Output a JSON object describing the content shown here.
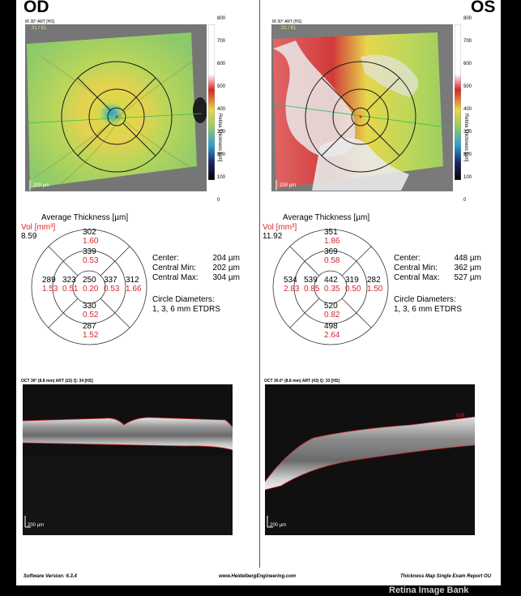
{
  "watermark": "Retina Image Bank",
  "colorbar": {
    "title": "Retina Thickness [µm]",
    "ticks": [
      "800",
      "700",
      "600",
      "500",
      "400",
      "300",
      "200",
      "100",
      "0"
    ]
  },
  "od": {
    "label": "OD",
    "map_title": "IR 30° ART [HS]",
    "q_badge": "31 / 61",
    "scale_bar": "200 µm",
    "avg_title": "Average Thickness [µm]",
    "vol_label": "Vol [mm³]",
    "vol_total": "8.59",
    "sectors": {
      "outer_top": {
        "t": "302",
        "v": "1.60"
      },
      "inner_top": {
        "t": "339",
        "v": "0.53"
      },
      "center": {
        "t": "250",
        "v": "0.20"
      },
      "inner_left": {
        "t": "323",
        "v": "0.51"
      },
      "inner_right": {
        "t": "337",
        "v": "0.53"
      },
      "outer_left": {
        "t": "289",
        "v": "1.53"
      },
      "outer_right": {
        "t": "312",
        "v": "1.66"
      },
      "inner_bottom": {
        "t": "330",
        "v": "0.52"
      },
      "outer_bottom": {
        "t": "287",
        "v": "1.52"
      }
    },
    "stats": [
      {
        "k": "Center:",
        "v": "204 µm"
      },
      {
        "k": "Central Min:",
        "v": "202 µm"
      },
      {
        "k": "Central Max:",
        "v": "304 µm"
      }
    ],
    "circle_label": "Circle Diameters:",
    "circle_value": "1, 3, 6 mm ETDRS",
    "scan_title": "OCT 30° (8.8 mm) ART (22) Q: 34 [HS]",
    "scan_scale": "200 µm"
  },
  "os": {
    "label": "OS",
    "map_title": "IR 30° ART [HS]",
    "q_badge": "31 / 61",
    "scale_bar": "200 µm",
    "avg_title": "Average Thickness [µm]",
    "vol_label": "Vol [mm³]",
    "vol_total": "11.92",
    "sectors": {
      "outer_top": {
        "t": "351",
        "v": "1.86"
      },
      "inner_top": {
        "t": "369",
        "v": "0.58"
      },
      "center": {
        "t": "442",
        "v": "0.35"
      },
      "inner_left": {
        "t": "539",
        "v": "0.85"
      },
      "inner_right": {
        "t": "319",
        "v": "0.50"
      },
      "outer_left": {
        "t": "534",
        "v": "2.83"
      },
      "outer_right": {
        "t": "282",
        "v": "1.50"
      },
      "inner_bottom": {
        "t": "520",
        "v": "0.82"
      },
      "outer_bottom": {
        "t": "498",
        "v": "2.64"
      }
    },
    "stats": [
      {
        "k": "Center:",
        "v": "448 µm"
      },
      {
        "k": "Central Min:",
        "v": "362 µm"
      },
      {
        "k": "Central Max:",
        "v": "527 µm"
      }
    ],
    "circle_label": "Circle Diameters:",
    "circle_value": "1, 3, 6 mm ETDRS",
    "scan_title": "OCT 30.0° (8.8 mm) ART (43) Q: 33 [HS]",
    "scan_scale": "200 µm",
    "scan_marker": "ILM"
  },
  "footer": {
    "software": "Software Version: 6.3.4",
    "website": "www.HeidelbergEngineering.com",
    "report": "Thickness Map Single Exam Report OU"
  },
  "colors": {
    "accent_red": "#d8262a",
    "map_green": "#9fce5e"
  }
}
